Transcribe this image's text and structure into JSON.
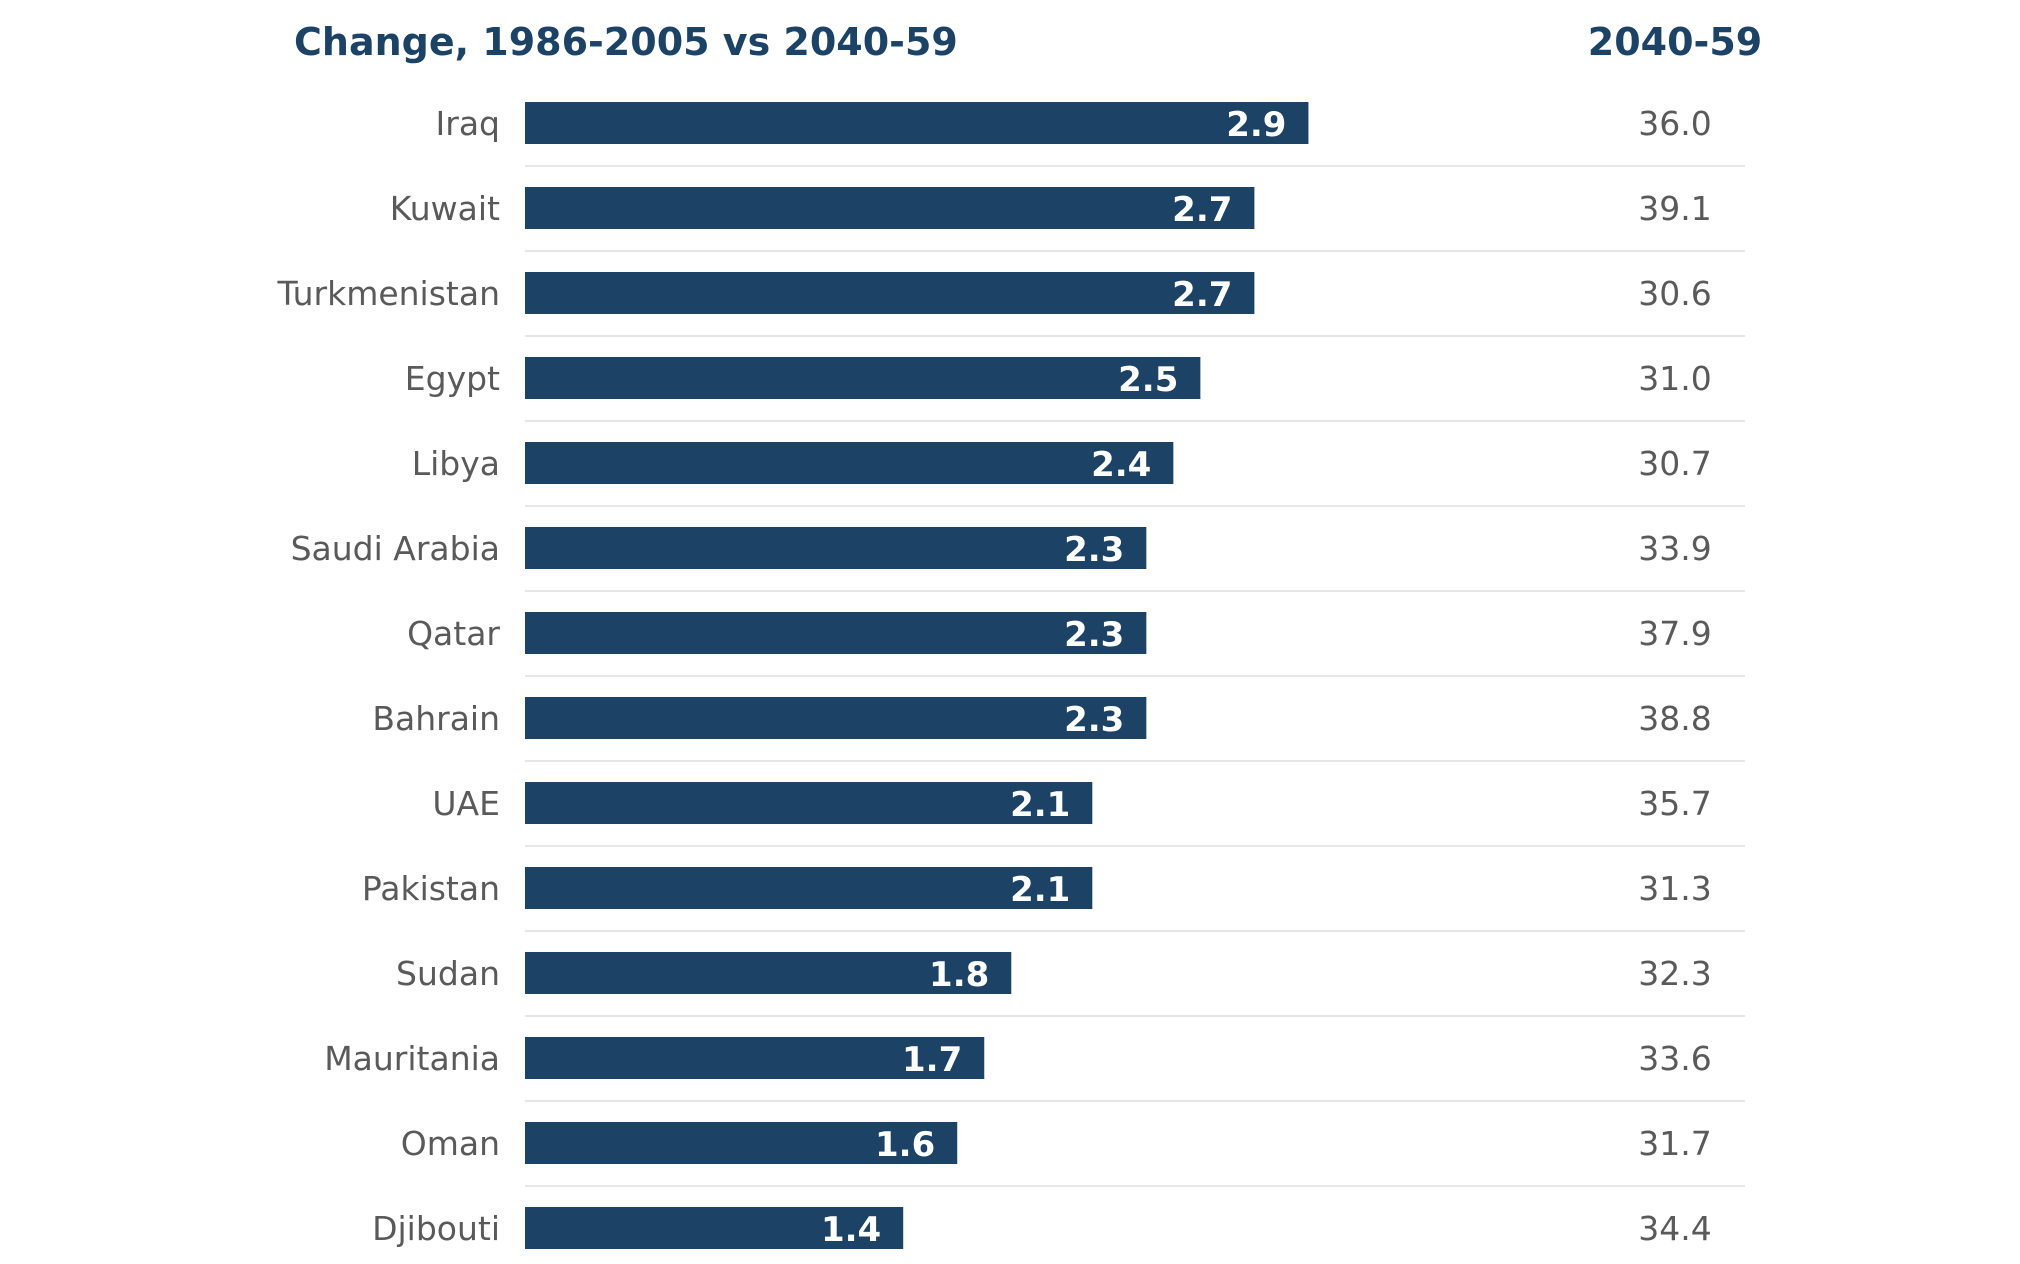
{
  "chart_data": {
    "type": "bar",
    "orientation": "horizontal",
    "title": "Change, 1986-2005 vs 2040-59",
    "secondary_column_title": "2040-59",
    "categories": [
      "Iraq",
      "Kuwait",
      "Turkmenistan",
      "Egypt",
      "Libya",
      "Saudi Arabia",
      "Qatar",
      "Bahrain",
      "UAE",
      "Pakistan",
      "Sudan",
      "Mauritania",
      "Oman",
      "Djibouti"
    ],
    "values": [
      2.9,
      2.7,
      2.7,
      2.5,
      2.4,
      2.3,
      2.3,
      2.3,
      2.1,
      2.1,
      1.8,
      1.7,
      1.6,
      1.4
    ],
    "value_labels": [
      "2.9",
      "2.7",
      "2.7",
      "2.5",
      "2.4",
      "2.3",
      "2.3",
      "2.3",
      "2.1",
      "2.1",
      "1.8",
      "1.7",
      "1.6",
      "1.4"
    ],
    "secondary_values": [
      "36.0",
      "39.1",
      "30.6",
      "31.0",
      "30.7",
      "33.9",
      "37.9",
      "38.8",
      "35.7",
      "31.3",
      "32.3",
      "33.6",
      "31.7",
      "34.4"
    ],
    "xlim": [
      0,
      3.35
    ],
    "grid": false,
    "colors": {
      "bar": "#1c4266",
      "header": "#1c4266",
      "text": "#5a5a5a",
      "separator": "#e6e6e6",
      "bar_label": "#ffffff"
    }
  }
}
